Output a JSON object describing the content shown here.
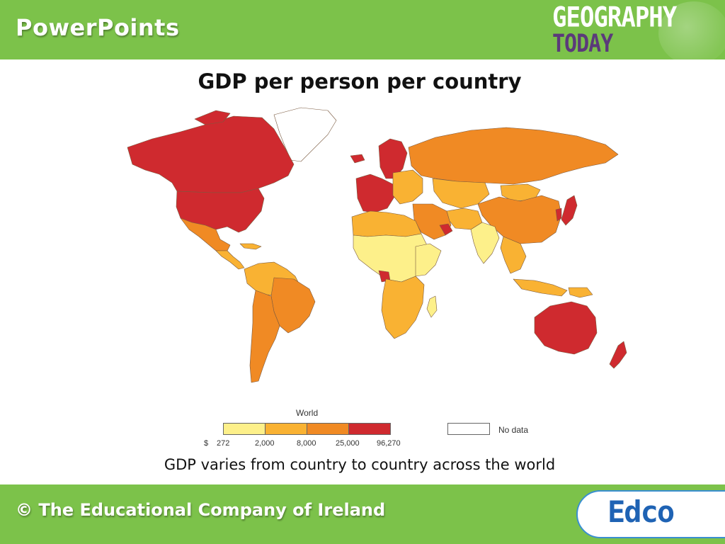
{
  "header": {
    "brand": "PowerPoints",
    "logo_line1": "GEOGRAPHY",
    "logo_line2": "TODAY",
    "band_color": "#7cc24a"
  },
  "slide": {
    "title": "GDP per person per country",
    "caption": "GDP varies from country to country across the world"
  },
  "map": {
    "type": "choropleth",
    "region": "World",
    "variable": "GDP per person",
    "classes": [
      {
        "min": "272",
        "max": "2,000",
        "color": "#fdf08a"
      },
      {
        "min": "2,000",
        "max": "8,000",
        "color": "#f9b233"
      },
      {
        "min": "8,000",
        "max": "25,000",
        "color": "#f08a24"
      },
      {
        "min": "25,000",
        "max": "96,270",
        "color": "#cf2a2f"
      }
    ],
    "no_data_color": "#ffffff"
  },
  "legend": {
    "title": "World",
    "currency": "$",
    "ticks": [
      "272",
      "2,000",
      "8,000",
      "25,000",
      "96,270"
    ],
    "no_data_label": "No data"
  },
  "footer": {
    "copyright": "© The Educational Company of Ireland",
    "logo": "Edco"
  }
}
